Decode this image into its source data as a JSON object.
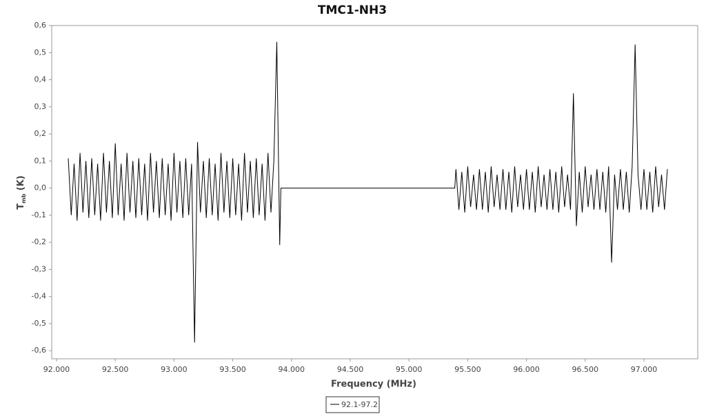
{
  "chart_data": {
    "type": "line",
    "title": "TMC1-NH3",
    "xlabel": "Frequency (MHz)",
    "ylabel": [
      "T",
      "mb",
      " (K)"
    ],
    "xlim": [
      91959,
      97458
    ],
    "ylim": [
      -0.63,
      0.6
    ],
    "xticks": [
      {
        "value": 92000,
        "label": "92.000"
      },
      {
        "value": 92500,
        "label": "92.500"
      },
      {
        "value": 93000,
        "label": "93.000"
      },
      {
        "value": 93500,
        "label": "93.500"
      },
      {
        "value": 94000,
        "label": "94.000"
      },
      {
        "value": 94500,
        "label": "94.500"
      },
      {
        "value": 95000,
        "label": "95.000"
      },
      {
        "value": 95500,
        "label": "95.500"
      },
      {
        "value": 96000,
        "label": "96.000"
      },
      {
        "value": 96500,
        "label": "96.500"
      },
      {
        "value": 97000,
        "label": "97.000"
      }
    ],
    "yticks": [
      {
        "value": -0.6,
        "label": "-0,6"
      },
      {
        "value": -0.5,
        "label": "-0,5"
      },
      {
        "value": -0.4,
        "label": "-0,4"
      },
      {
        "value": -0.3,
        "label": "-0,3"
      },
      {
        "value": -0.2,
        "label": "-0,2"
      },
      {
        "value": -0.1,
        "label": "-0,1"
      },
      {
        "value": 0,
        "label": "0,0"
      },
      {
        "value": 0.1,
        "label": "0,1"
      },
      {
        "value": 0.2,
        "label": "0,2"
      },
      {
        "value": 0.3,
        "label": "0,3"
      },
      {
        "value": 0.4,
        "label": "0,4"
      },
      {
        "value": 0.5,
        "label": "0,5"
      },
      {
        "value": 0.6,
        "label": "0,6"
      }
    ],
    "x": [
      92100,
      92125,
      92150,
      92175,
      92200,
      92225,
      92250,
      92275,
      92300,
      92325,
      92350,
      92375,
      92400,
      92425,
      92450,
      92475,
      92500,
      92525,
      92550,
      92575,
      92600,
      92625,
      92650,
      92675,
      92700,
      92725,
      92750,
      92775,
      92800,
      92825,
      92850,
      92875,
      92900,
      92925,
      92950,
      92975,
      93000,
      93025,
      93050,
      93075,
      93100,
      93125,
      93150,
      93175,
      93200,
      93225,
      93250,
      93275,
      93300,
      93325,
      93350,
      93375,
      93400,
      93425,
      93450,
      93475,
      93500,
      93525,
      93550,
      93575,
      93600,
      93625,
      93650,
      93675,
      93700,
      93725,
      93750,
      93775,
      93800,
      93825,
      93850,
      93875,
      93900,
      93910,
      95390,
      95400,
      95425,
      95450,
      95475,
      95500,
      95525,
      95550,
      95575,
      95600,
      95625,
      95650,
      95675,
      95700,
      95725,
      95750,
      95775,
      95800,
      95825,
      95850,
      95875,
      95900,
      95925,
      95950,
      95975,
      96000,
      96025,
      96050,
      96075,
      96100,
      96125,
      96150,
      96175,
      96200,
      96225,
      96250,
      96275,
      96300,
      96325,
      96350,
      96375,
      96400,
      96425,
      96450,
      96475,
      96500,
      96525,
      96550,
      96575,
      96600,
      96625,
      96650,
      96675,
      96700,
      96725,
      96750,
      96775,
      96800,
      96825,
      96850,
      96875,
      96900,
      96925,
      96950,
      96975,
      97000,
      97025,
      97050,
      97075,
      97100,
      97125,
      97150,
      97175,
      97200
    ],
    "series": [
      {
        "name": "92.1-97.2",
        "color": "#000000",
        "values": [
          0.11,
          -0.1,
          0.09,
          -0.12,
          0.13,
          -0.09,
          0.1,
          -0.11,
          0.11,
          -0.1,
          0.09,
          -0.12,
          0.13,
          -0.09,
          0.1,
          -0.11,
          0.165,
          -0.1,
          0.09,
          -0.12,
          0.13,
          -0.09,
          0.1,
          -0.11,
          0.11,
          -0.1,
          0.09,
          -0.12,
          0.13,
          -0.09,
          0.1,
          -0.11,
          0.11,
          -0.1,
          0.09,
          -0.12,
          0.13,
          -0.09,
          0.1,
          -0.11,
          0.11,
          -0.1,
          0.09,
          -0.57,
          0.17,
          -0.09,
          0.1,
          -0.11,
          0.11,
          -0.1,
          0.09,
          -0.12,
          0.13,
          -0.09,
          0.1,
          -0.11,
          0.11,
          -0.1,
          0.09,
          -0.12,
          0.13,
          -0.09,
          0.1,
          -0.11,
          0.11,
          -0.1,
          0.09,
          -0.12,
          0.13,
          -0.09,
          0.1,
          0.54,
          -0.21,
          0,
          0,
          0.07,
          -0.08,
          0.06,
          -0.09,
          0.08,
          -0.07,
          0.05,
          -0.08,
          0.07,
          -0.08,
          0.06,
          -0.09,
          0.08,
          -0.07,
          0.05,
          -0.08,
          0.07,
          -0.08,
          0.06,
          -0.09,
          0.08,
          -0.07,
          0.05,
          -0.08,
          0.07,
          -0.08,
          0.06,
          -0.09,
          0.08,
          -0.07,
          0.05,
          -0.08,
          0.07,
          -0.08,
          0.06,
          -0.09,
          0.08,
          -0.07,
          0.05,
          -0.08,
          0.35,
          -0.14,
          0.06,
          -0.09,
          0.08,
          -0.07,
          0.05,
          -0.08,
          0.07,
          -0.08,
          0.06,
          -0.09,
          0.08,
          -0.275,
          0.05,
          -0.08,
          0.07,
          -0.08,
          0.06,
          -0.09,
          0.08,
          0.53,
          0.05,
          -0.08,
          0.07,
          -0.08,
          0.06,
          -0.09,
          0.08,
          -0.07,
          0.05,
          -0.08,
          0.07
        ]
      }
    ]
  }
}
